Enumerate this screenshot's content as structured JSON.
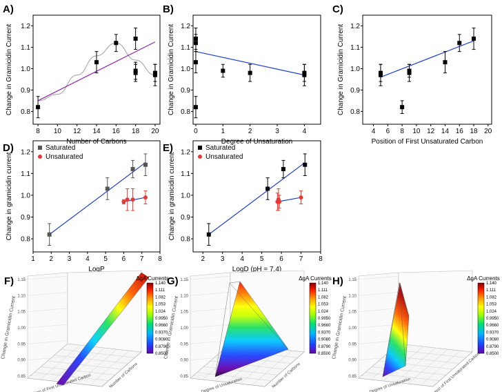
{
  "chart_data": [
    {
      "id": "A",
      "panel_label": "A)",
      "type": "scatter",
      "xlabel": "Number of Carbons",
      "ylabel": "Change in Gramicidin Current",
      "xlim": [
        7.5,
        20.5
      ],
      "ylim": [
        0.74,
        1.25
      ],
      "xticks": [
        8,
        10,
        12,
        14,
        16,
        18,
        20
      ],
      "yticks": [
        0.8,
        0.9,
        1.0,
        1.1,
        1.2
      ],
      "points": [
        {
          "x": 8,
          "y": 0.82,
          "err": 0.05
        },
        {
          "x": 14,
          "y": 1.03,
          "err": 0.05
        },
        {
          "x": 16,
          "y": 1.12,
          "err": 0.04
        },
        {
          "x": 18,
          "y": 1.14,
          "err": 0.05
        },
        {
          "x": 18,
          "y": 0.98,
          "err": 0.04
        },
        {
          "x": 18,
          "y": 0.99,
          "err": 0.04
        },
        {
          "x": 20,
          "y": 0.97,
          "err": 0.05
        },
        {
          "x": 20,
          "y": 0.98,
          "err": 0.04
        }
      ],
      "fit_line": {
        "x": [
          8,
          20
        ],
        "y": [
          0.85,
          1.125
        ],
        "color": "#8e24aa"
      },
      "fit_curve": {
        "x": [
          8,
          10,
          12,
          14,
          16,
          18,
          20
        ],
        "y": [
          0.85,
          0.88,
          0.97,
          1.06,
          1.12,
          1.04,
          0.97
        ],
        "color": "#9e9e9e"
      }
    },
    {
      "id": "B",
      "panel_label": "B)",
      "type": "scatter",
      "xlabel": "Degree of Unsaturation",
      "ylabel": "Change in Gramicidin Current",
      "xlim": [
        -0.1,
        4.6
      ],
      "ylim": [
        0.74,
        1.25
      ],
      "xticks": [
        0,
        1,
        2,
        3,
        4
      ],
      "yticks": [
        0.8,
        0.9,
        1.0,
        1.1,
        1.2
      ],
      "points": [
        {
          "x": 0,
          "y": 0.82,
          "err": 0.05
        },
        {
          "x": 0,
          "y": 1.03,
          "err": 0.05
        },
        {
          "x": 0,
          "y": 1.12,
          "err": 0.04
        },
        {
          "x": 0,
          "y": 1.14,
          "err": 0.05
        },
        {
          "x": 1,
          "y": 0.99,
          "err": 0.03
        },
        {
          "x": 2,
          "y": 0.98,
          "err": 0.04
        },
        {
          "x": 4,
          "y": 0.97,
          "err": 0.05
        },
        {
          "x": 4,
          "y": 0.98,
          "err": 0.04
        }
      ],
      "fit_line": {
        "x": [
          0,
          4
        ],
        "y": [
          1.08,
          0.97
        ],
        "color": "#1f3fd0"
      }
    },
    {
      "id": "C",
      "panel_label": "C)",
      "type": "scatter",
      "xlabel": "Position of First Unsaturated Carbon",
      "ylabel": "Change in Gramicidin Current",
      "xlim": [
        2.5,
        20.5
      ],
      "ylim": [
        0.74,
        1.25
      ],
      "xticks": [
        4,
        6,
        8,
        10,
        12,
        14,
        16,
        18,
        20
      ],
      "yticks": [
        0.8,
        0.9,
        1.0,
        1.1,
        1.2
      ],
      "points": [
        {
          "x": 5,
          "y": 0.97,
          "err": 0.05
        },
        {
          "x": 5,
          "y": 0.98,
          "err": 0.04
        },
        {
          "x": 8,
          "y": 0.82,
          "err": 0.03
        },
        {
          "x": 9,
          "y": 0.98,
          "err": 0.04
        },
        {
          "x": 9,
          "y": 0.99,
          "err": 0.03
        },
        {
          "x": 14,
          "y": 1.03,
          "err": 0.05
        },
        {
          "x": 16,
          "y": 1.12,
          "err": 0.04
        },
        {
          "x": 18,
          "y": 1.14,
          "err": 0.05
        }
      ],
      "fit_line": {
        "x": [
          5,
          18
        ],
        "y": [
          0.96,
          1.13
        ],
        "color": "#1f3fd0"
      }
    },
    {
      "id": "D",
      "panel_label": "D)",
      "type": "scatter",
      "xlabel": "LogP",
      "ylabel": "Change in gramicidin current",
      "xlim": [
        1,
        8
      ],
      "ylim": [
        0.74,
        1.25
      ],
      "xticks": [
        1,
        2,
        3,
        4,
        5,
        6,
        7,
        8
      ],
      "yticks": [
        0.8,
        0.9,
        1.0,
        1.1,
        1.2
      ],
      "legend": [
        {
          "label": "Saturated",
          "color": "#555555",
          "marker": "square"
        },
        {
          "label": "Unsaturated",
          "color": "#e53935",
          "marker": "circle"
        }
      ],
      "series": [
        {
          "name": "Saturated",
          "color": "#555555",
          "marker": "square",
          "points": [
            {
              "x": 1.9,
              "y": 0.82,
              "err": 0.05
            },
            {
              "x": 5.1,
              "y": 1.03,
              "err": 0.05
            },
            {
              "x": 6.5,
              "y": 1.12,
              "err": 0.04
            },
            {
              "x": 7.2,
              "y": 1.14,
              "err": 0.05
            }
          ]
        },
        {
          "name": "Unsaturated",
          "color": "#e53935",
          "marker": "circle",
          "points": [
            {
              "x": 6.0,
              "y": 0.97,
              "err": 0.01
            },
            {
              "x": 6.2,
              "y": 0.98,
              "err": 0.05
            },
            {
              "x": 6.5,
              "y": 0.98,
              "err": 0.05
            },
            {
              "x": 7.2,
              "y": 0.99,
              "err": 0.03
            }
          ]
        }
      ],
      "fit_lines": [
        {
          "x": [
            1.9,
            7.2
          ],
          "y": [
            0.82,
            1.15
          ],
          "color": "#1f3fd0"
        },
        {
          "x": [
            6.0,
            7.2
          ],
          "y": [
            0.97,
            0.99
          ],
          "color": "#1f3fd0"
        }
      ]
    },
    {
      "id": "E",
      "panel_label": "E)",
      "type": "scatter",
      "xlabel": "LogD (pH = 7.4)",
      "ylabel": "Change in gramicidin current",
      "xlim": [
        1.5,
        8
      ],
      "ylim": [
        0.74,
        1.25
      ],
      "xticks": [
        2,
        3,
        4,
        5,
        6,
        7,
        8
      ],
      "yticks": [
        0.8,
        0.9,
        1.0,
        1.1,
        1.2
      ],
      "legend": [
        {
          "label": "Saturated",
          "color": "#000000",
          "marker": "square"
        },
        {
          "label": "Unsaturated",
          "color": "#e53935",
          "marker": "circle"
        }
      ],
      "series": [
        {
          "name": "Saturated",
          "color": "#000000",
          "marker": "square",
          "points": [
            {
              "x": 2.3,
              "y": 0.82,
              "err": 0.05
            },
            {
              "x": 5.3,
              "y": 1.03,
              "err": 0.05
            },
            {
              "x": 6.1,
              "y": 1.12,
              "err": 0.04
            },
            {
              "x": 7.2,
              "y": 1.14,
              "err": 0.05
            }
          ]
        },
        {
          "name": "Unsaturated",
          "color": "#e53935",
          "marker": "circle",
          "points": [
            {
              "x": 5.8,
              "y": 0.97,
              "err": 0.04
            },
            {
              "x": 5.85,
              "y": 0.98,
              "err": 0.05
            },
            {
              "x": 5.9,
              "y": 0.97,
              "err": 0.03
            },
            {
              "x": 7.0,
              "y": 0.99,
              "err": 0.03
            }
          ]
        }
      ],
      "fit_lines": [
        {
          "x": [
            2.3,
            7.2
          ],
          "y": [
            0.82,
            1.15
          ],
          "color": "#1f3fd0"
        },
        {
          "x": [
            5.8,
            7.0
          ],
          "y": [
            0.97,
            0.99
          ],
          "color": "#1f3fd0"
        }
      ]
    },
    {
      "id": "F",
      "panel_label": "F)",
      "type": "surface3d",
      "zlabel": "Change in Gramicidin Current",
      "xlabel": "Position of First Unsaturated Carbon",
      "ylabel": "Number of Carbons",
      "zticks": [
        "0.85",
        "0.90",
        "0.95",
        "1.00",
        "1.05",
        "1.10",
        "1.15"
      ],
      "colorbar_title": "ΔgA Currents",
      "colorbar_ticks": [
        "1.140",
        "1.111",
        "1.082",
        "1.053",
        "1.024",
        "0.9950",
        "0.9660",
        "0.9370",
        "0.9080",
        "0.8790",
        "0.8500"
      ],
      "zrange": [
        0.85,
        1.14
      ]
    },
    {
      "id": "G",
      "panel_label": "G)",
      "type": "surface3d",
      "zlabel": "Change in Gramicidin Current",
      "xlabel": "Degree of Unsaturation",
      "ylabel": "Number of Carbons",
      "zticks": [
        "0.85",
        "0.90",
        "0.95",
        "1.00",
        "1.05",
        "1.10",
        "1.15"
      ],
      "colorbar_title": "ΔgA Currents",
      "colorbar_ticks": [
        "1.140",
        "1.111",
        "1.082",
        "1.053",
        "1.024",
        "0.9950",
        "0.9660",
        "0.9370",
        "0.9080",
        "0.8790",
        "0.8500"
      ],
      "zrange": [
        0.85,
        1.14
      ]
    },
    {
      "id": "H",
      "panel_label": "H)",
      "type": "surface3d",
      "zlabel": "Change in Gramicidin Current",
      "xlabel": "Degree of Unsaturation",
      "ylabel": "Position of First Unsaturated Carbon",
      "zticks": [
        "0.85",
        "0.90",
        "0.95",
        "1.00",
        "1.05",
        "1.10",
        "1.15"
      ],
      "colorbar_title": "ΔgA Currents",
      "colorbar_ticks": [
        "1.140",
        "1.111",
        "1.082",
        "1.053",
        "1.024",
        "0.9950",
        "0.9660",
        "0.9370",
        "0.9080",
        "0.8790",
        "0.8500"
      ],
      "zrange": [
        0.85,
        1.14
      ]
    }
  ]
}
